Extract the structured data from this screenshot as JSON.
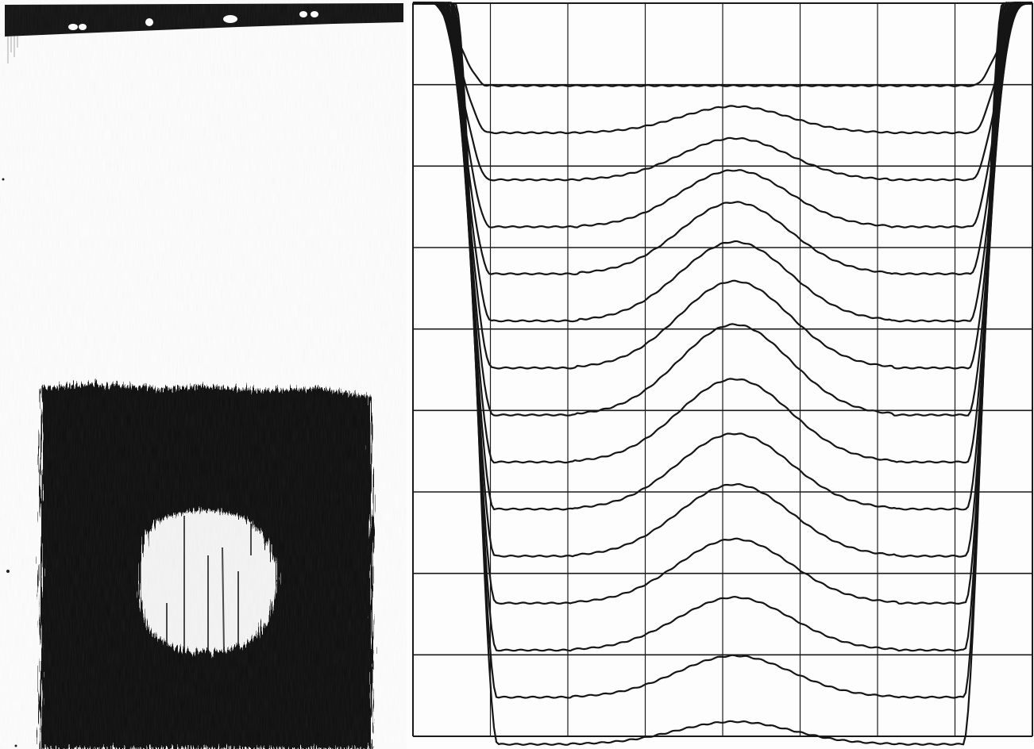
{
  "figure": {
    "left_image": {
      "description_icon": "photograph-icon",
      "top_band_color": "#111111",
      "background_color": "#fdfdfd",
      "dark_field_color": "#0a0a0a",
      "bright_spot_color": "#f4f4f4"
    },
    "right_plot": {
      "grid": true,
      "grid_color": "#1a1a1a",
      "trace_color": "#151515",
      "vertical_gridlines": 8,
      "horizontal_gridlines": 9,
      "trace_count": 15,
      "trace_peak_heights": [
        0.0,
        0.35,
        0.55,
        0.75,
        0.95,
        1.05,
        1.15,
        1.2,
        1.1,
        1.0,
        0.95,
        0.85,
        0.7,
        0.55,
        0.3
      ]
    }
  }
}
